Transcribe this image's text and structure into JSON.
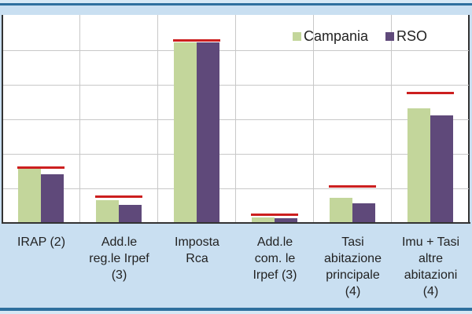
{
  "chart_data": {
    "type": "bar",
    "title": "",
    "xlabel": "",
    "ylabel": "",
    "y_tick_labels_visible": false,
    "ylim": [
      0,
      5.5
    ],
    "grid": true,
    "legend_position": "top-right-inside",
    "categories": [
      "IRAP (2)",
      "Add.le reg.le Irpef (3)",
      "Imposta Rca",
      "Add.le com. le Irpef (3)",
      "Tasi abitazione principale (4)",
      "Imu + Tasi altre abitazioni (4)"
    ],
    "category_label_lines": [
      [
        "IRAP (2)"
      ],
      [
        "Add.le",
        "reg.le Irpef",
        "(3)"
      ],
      [
        "Imposta",
        "Rca"
      ],
      [
        "Add.le",
        "com. le",
        "Irpef (3)"
      ],
      [
        "Tasi",
        "abitazione",
        "principale",
        "(4)"
      ],
      [
        "Imu + Tasi",
        "altre",
        "abitazioni",
        "(4)"
      ]
    ],
    "series": [
      {
        "name": "Campania",
        "color": "#c3d69b",
        "values": [
          1.57,
          0.66,
          5.23,
          0.16,
          0.73,
          3.32
        ]
      },
      {
        "name": "RSO",
        "color": "#5f497a",
        "values": [
          1.41,
          0.52,
          5.23,
          0.14,
          0.57,
          3.11
        ]
      }
    ],
    "reference_lines": {
      "description": "red horizontal marker above each category",
      "color": "#cc1f1f",
      "values": [
        1.61,
        0.77,
        5.3,
        0.25,
        1.07,
        3.77
      ]
    },
    "units_note": "values in gridline units (no numeric axis labels shown)"
  },
  "legend": {
    "items": [
      {
        "label": "Campania",
        "color": "#c3d69b"
      },
      {
        "label": "RSO",
        "color": "#5f497a"
      }
    ]
  },
  "colors": {
    "frame": "#2e6f9e",
    "background": "#c9dff1",
    "grid": "#c8c8c8",
    "axis": "#333333"
  }
}
